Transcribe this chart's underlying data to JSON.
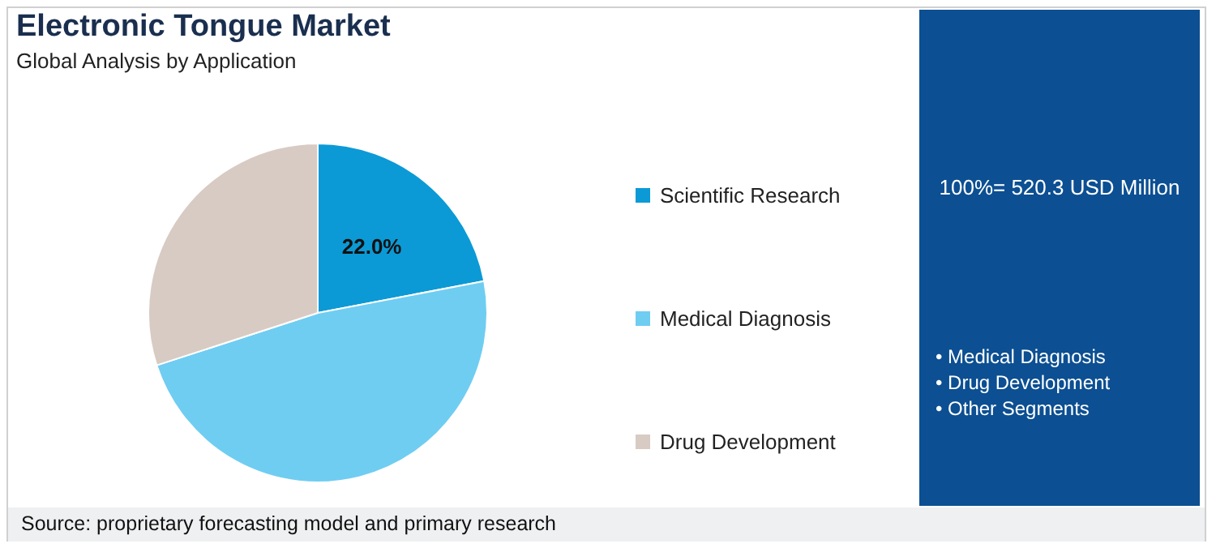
{
  "chart_data": {
    "type": "pie",
    "title": "Electronic Tongue Market",
    "subtitle": "Global Analysis by Application",
    "categories": [
      "Scientific Research",
      "Medical Diagnosis",
      "Drug Development"
    ],
    "values": [
      22.0,
      48.0,
      30.0
    ],
    "colors": [
      "#0b9ad6",
      "#6fcdf2",
      "#d8cbc4"
    ],
    "value_labels": [
      "22.0%",
      null,
      null
    ],
    "legend": "right",
    "annotations": [
      "100%= 520.3 USD Million",
      "• Medical Diagnosis",
      "• Drug Development",
      "• Other Segments",
      "Source: proprietary forecasting model and primary research"
    ]
  }
}
